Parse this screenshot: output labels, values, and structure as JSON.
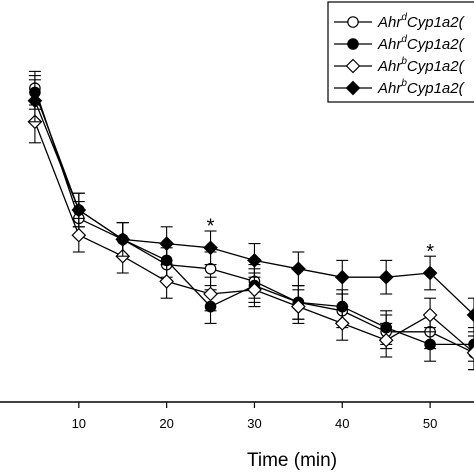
{
  "chart_data": {
    "type": "line",
    "xlabel": "Time (min)",
    "ylabel": "",
    "xlim": [
      0,
      55
    ],
    "x_ticks": [
      10,
      20,
      30,
      40,
      50
    ],
    "x": [
      5,
      10,
      15,
      20,
      25,
      30,
      35,
      40,
      45,
      50,
      55
    ],
    "grid": false,
    "legend_position": "top-right",
    "series": [
      {
        "name": "Ahr^d Cyp1a2(",
        "legend_prefix": "Ahr",
        "legend_sup": "d",
        "legend_suffix": "Cyp1a2(",
        "marker": "circle-open",
        "values": [
          79,
          48,
          43,
          37,
          36,
          33,
          28,
          26,
          21,
          21,
          16
        ],
        "errors": [
          4,
          4,
          4,
          4,
          4,
          4,
          4,
          4,
          4,
          4,
          4
        ]
      },
      {
        "name": "Ahr^d Cyp1a2(",
        "legend_prefix": "Ahr",
        "legend_sup": "d",
        "legend_suffix": "Cyp1a2(",
        "marker": "circle-filled",
        "values": [
          78,
          50,
          43,
          38,
          27,
          32,
          28,
          27,
          22,
          18,
          18
        ],
        "errors": [
          4,
          4,
          4,
          4,
          4,
          4,
          4,
          4,
          4,
          4,
          4
        ]
      },
      {
        "name": "Ahr^b Cyp1a2(",
        "legend_prefix": "Ahr",
        "legend_sup": "b",
        "legend_suffix": "Cyp1a2(",
        "marker": "diamond-open",
        "values": [
          71,
          44,
          39,
          33,
          30,
          31,
          27,
          23,
          19,
          25,
          16
        ],
        "errors": [
          5,
          4,
          4,
          4,
          4,
          4,
          4,
          4,
          4,
          4,
          4
        ]
      },
      {
        "name": "Ahr^b Cyp1a2(",
        "legend_prefix": "Ahr",
        "legend_sup": "b",
        "legend_suffix": "Cyp1a2(",
        "marker": "diamond-filled",
        "values": [
          76,
          50,
          43,
          42,
          41,
          38,
          36,
          34,
          34,
          35,
          25
        ],
        "errors": [
          5,
          4,
          4,
          4,
          4,
          4,
          4,
          4,
          4,
          4,
          4
        ]
      }
    ],
    "annotations": [
      {
        "text": "*",
        "x": 25,
        "y": 47
      },
      {
        "text": "*",
        "x": 50,
        "y": 41
      }
    ]
  }
}
